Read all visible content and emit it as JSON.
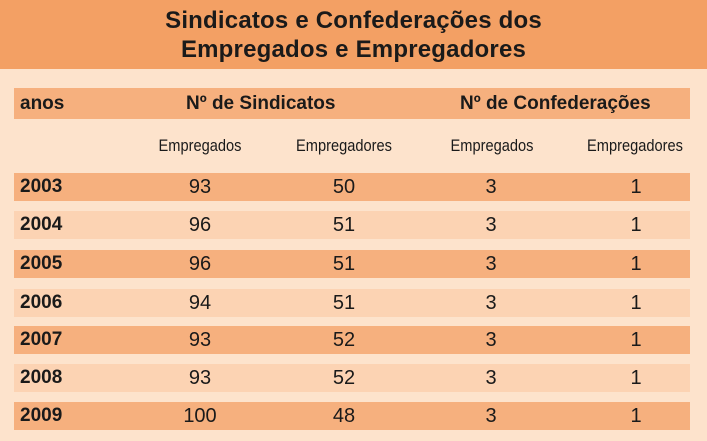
{
  "title": {
    "line1": "Sindicatos e Confederações dos",
    "line2": "Empregados e Empregadores"
  },
  "header": {
    "years_label": "anos",
    "unions_label": "Nº de Sindicatos",
    "confederations_label": "Nº de Confederações"
  },
  "subheaders": [
    "Empregados",
    "Empregadores",
    "Empregados",
    "Empregadores"
  ],
  "rows": [
    {
      "year": "2003",
      "values": [
        "93",
        "50",
        "3",
        "1"
      ]
    },
    {
      "year": "2004",
      "values": [
        "96",
        "51",
        "3",
        "1"
      ]
    },
    {
      "year": "2005",
      "values": [
        "96",
        "51",
        "3",
        "1"
      ]
    },
    {
      "year": "2006",
      "values": [
        "94",
        "51",
        "3",
        "1"
      ]
    },
    {
      "year": "2007",
      "values": [
        "93",
        "52",
        "3",
        "1"
      ]
    },
    {
      "year": "2008",
      "values": [
        "93",
        "52",
        "3",
        "1"
      ]
    },
    {
      "year": "2009",
      "values": [
        "100",
        "48",
        "3",
        "1"
      ]
    }
  ],
  "colors": {
    "title_band": "#f3a064",
    "row_dark": "#f6b07e",
    "row_light": "#fcd3b3",
    "background": "#fde3cc"
  }
}
